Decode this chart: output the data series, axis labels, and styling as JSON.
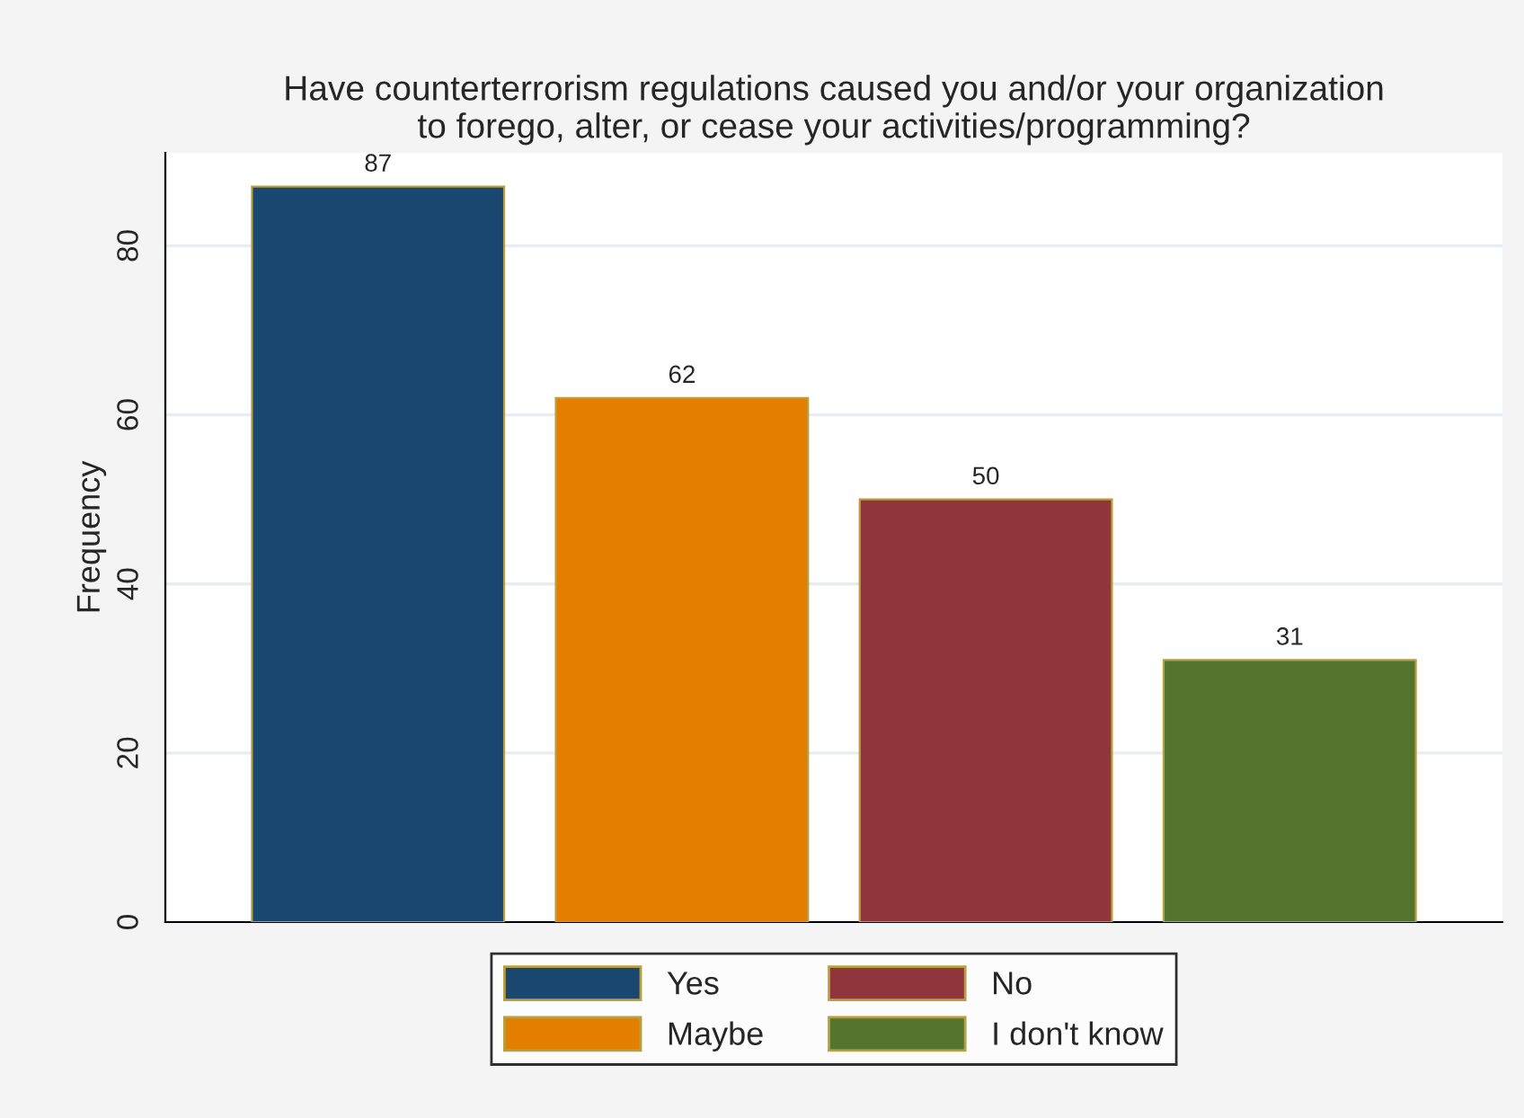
{
  "chart_data": {
    "type": "bar",
    "title": "Have counterterrorism regulations caused you and/or your organization\nto forego, alter, or cease your activities/programming?",
    "ylabel": "Frequency",
    "categories": [
      null,
      null,
      null,
      null
    ],
    "series": [
      {
        "name": "Yes",
        "color": "#1a476f",
        "values": [
          87,
          null,
          null,
          null
        ]
      },
      {
        "name": "Maybe",
        "color": "#e37e00",
        "values": [
          null,
          62,
          null,
          null
        ]
      },
      {
        "name": "No",
        "color": "#90353b",
        "values": [
          null,
          null,
          50,
          null
        ]
      },
      {
        "name": "I don't know",
        "color": "#55752f",
        "values": [
          null,
          null,
          null,
          31
        ]
      }
    ],
    "ylim": [
      0,
      91
    ],
    "yticks": [
      0,
      20,
      40,
      60,
      80
    ],
    "grid": "y",
    "data_labels": true,
    "legend": "bottom"
  }
}
